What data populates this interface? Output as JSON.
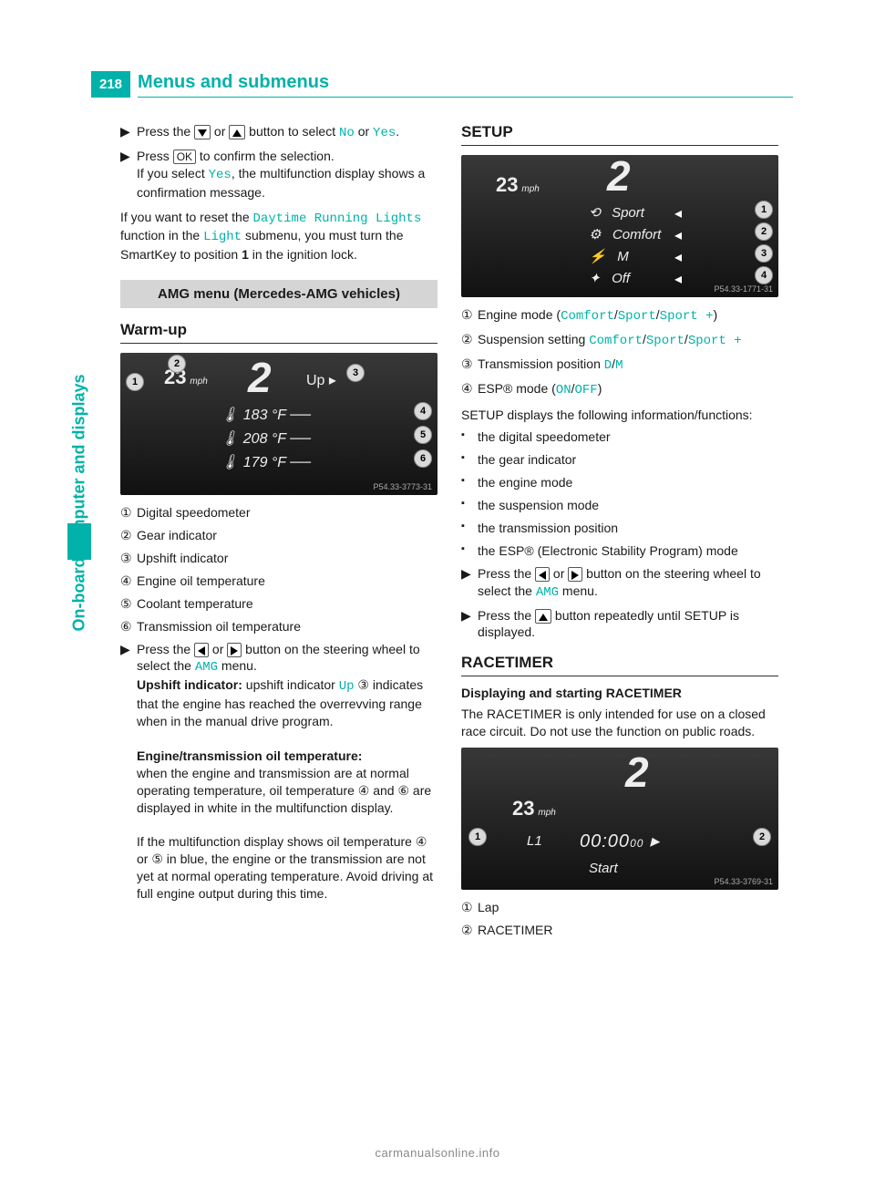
{
  "page_number": "218",
  "header": "Menus and submenus",
  "side_label": "On-board computer and displays",
  "colors": {
    "accent": "#00b2a9",
    "section_bg": "#d5d5d5",
    "fig_bg": "#2a2a2a"
  },
  "left": {
    "p1_a": "Press the ",
    "p1_b": " or ",
    "p1_c": " button to select ",
    "p1_no": "No",
    "p1_or": " or ",
    "p1_yes": "Yes",
    "p1_dot": ".",
    "p2_a": "Press ",
    "p2_ok": "OK",
    "p2_b": " to confirm the selection.",
    "p2_c": "If you select ",
    "p2_yes": "Yes",
    "p2_d": ", the multifunction display shows a confirmation message.",
    "p3_a": "If you want to reset the ",
    "p3_drl": "Daytime Running Lights",
    "p3_b": " function in the ",
    "p3_light": "Light",
    "p3_c": " submenu, you must turn the SmartKey to position ",
    "p3_pos": "1",
    "p3_d": " in the ignition lock.",
    "section": "AMG menu (Mercedes-AMG vehicles)",
    "warmup": "Warm-up",
    "fig1_caption": "P54.33-3773-31",
    "fig1": {
      "speed": "23",
      "unit": "mph",
      "gear": "2",
      "up": "Up",
      "t1": "183 °F",
      "t2": "208 °F",
      "t3": "179 °F"
    },
    "legend": {
      "1": "Digital speedometer",
      "2": "Gear indicator",
      "3": "Upshift indicator",
      "4": "Engine oil temperature",
      "5": "Coolant temperature",
      "6": "Transmission oil temperature"
    },
    "p4_a": "Press the ",
    "p4_b": " or ",
    "p4_c": " button on the steering wheel to select the ",
    "p4_amg": "AMG",
    "p4_d": " menu.",
    "p5_head": "Upshift indicator:",
    "p5_a": " upshift indicator ",
    "p5_up": "Up",
    "p5_b": " ③ indicates that the engine has reached the overrevving range when in the manual drive program.",
    "p6_head": "Engine/transmission oil temperature:",
    "p6_a": "when the engine and transmission are at normal operating temperature, oil temperature ④ and ⑥ are displayed in white in the multifunction display.",
    "p6_b": "If the multifunction display shows oil temperature ④ or ⑤ in blue, the engine or the transmission are not yet at normal operating temperature. Avoid driving at full engine output during this time."
  },
  "right": {
    "setup": "SETUP",
    "fig2_caption": "P54.33-1771-31",
    "fig2": {
      "speed": "23",
      "unit": "mph",
      "gear": "2",
      "r1": "Sport",
      "r2": "Comfort",
      "r3": "M",
      "r4": "Off"
    },
    "l1_a": "Engine mode (",
    "l1_c1": "Comfort",
    "l1_s": "/",
    "l1_c2": "Sport",
    "l1_c3": "Sport +",
    "l1_b": ")",
    "l2_a": "Suspension setting ",
    "l2_c1": "Comfort",
    "l2_c2": "Sport",
    "l2_c3": "Sport +",
    "l3_a": "Transmission position ",
    "l3_d": "D",
    "l3_m": "M",
    "l4_a": "ESP® mode (",
    "l4_on": "ON",
    "l4_off": "OFF",
    "l4_b": ")",
    "p_intro": "SETUP displays the following information/functions:",
    "bullets": [
      "the digital speedometer",
      "the gear indicator",
      "the engine mode",
      "the suspension mode",
      "the transmission position",
      "the ESP® (Electronic Stability Program) mode"
    ],
    "p7_a": "Press the ",
    "p7_b": " or ",
    "p7_c": " button on the steering wheel to select the ",
    "p7_amg": "AMG",
    "p7_d": " menu.",
    "p8_a": "Press the ",
    "p8_b": " button repeatedly until SETUP is displayed.",
    "race": "RACETIMER",
    "race_sub": "Displaying and starting RACETIMER",
    "race_intro": "The RACETIMER is only intended for use on a closed race circuit. Do not use the function on public roads.",
    "fig3_caption": "P54.33-3769-31",
    "fig3": {
      "speed": "23",
      "unit": "mph",
      "gear": "2",
      "lap": "L1",
      "time": "00:00",
      "ms": "00",
      "start": "Start"
    },
    "legend2": {
      "1": "Lap",
      "2": "RACETIMER"
    }
  },
  "footer": "carmanualsonline.info"
}
